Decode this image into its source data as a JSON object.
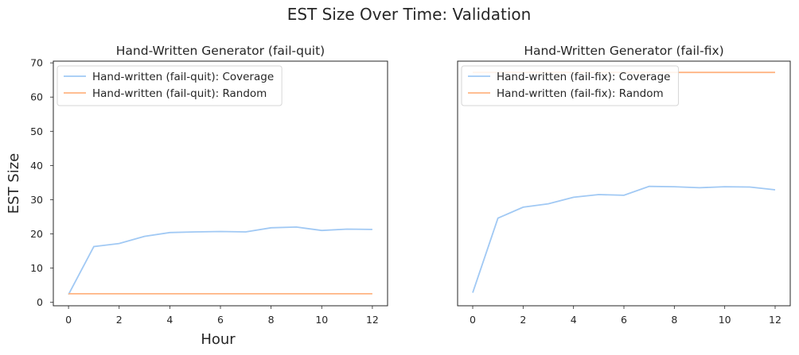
{
  "figure": {
    "suptitle": "EST Size Over Time: Validation",
    "ylabel": "EST Size",
    "xlabel": "Hour"
  },
  "chart_data": [
    {
      "type": "line",
      "title": "Hand-Written Generator (fail-quit)",
      "xlabel": "Hour",
      "ylabel": "EST Size",
      "xlim": [
        -0.6,
        12.6
      ],
      "ylim": [
        -1,
        70.5
      ],
      "xticks": [
        "0",
        "2",
        "4",
        "6",
        "8",
        "10",
        "12"
      ],
      "yticks": [
        "0",
        "10",
        "20",
        "30",
        "40",
        "50",
        "60",
        "70"
      ],
      "legend_position": "top-left",
      "x": [
        0,
        1,
        2,
        3,
        4,
        5,
        6,
        7,
        8,
        9,
        10,
        11,
        12
      ],
      "series": [
        {
          "name": "Hand-written (fail-quit): Coverage",
          "color": "#a1c9f4",
          "values": [
            2.3,
            16.3,
            17.2,
            19.3,
            20.4,
            20.6,
            20.7,
            20.6,
            21.8,
            22.0,
            21.0,
            21.4,
            21.3
          ]
        },
        {
          "name": "Hand-written (fail-quit): Random",
          "color": "#ffb482",
          "values": [
            2.5,
            2.5,
            2.5,
            2.5,
            2.5,
            2.5,
            2.5,
            2.5,
            2.5,
            2.5,
            2.5,
            2.5,
            2.5
          ]
        }
      ]
    },
    {
      "type": "line",
      "title": "Hand-Written Generator (fail-fix)",
      "xlabel": "Hour",
      "ylabel": "",
      "xlim": [
        -0.6,
        12.6
      ],
      "ylim": [
        -1,
        70.5
      ],
      "xticks": [
        "0",
        "2",
        "4",
        "6",
        "8",
        "10",
        "12"
      ],
      "yticks": [],
      "legend_position": "top-left",
      "x": [
        0,
        1,
        2,
        3,
        4,
        5,
        6,
        7,
        8,
        9,
        10,
        11,
        12
      ],
      "series": [
        {
          "name": "Hand-written (fail-fix): Coverage",
          "color": "#a1c9f4",
          "values": [
            2.8,
            24.6,
            27.8,
            28.8,
            30.7,
            31.5,
            31.3,
            33.9,
            33.8,
            33.5,
            33.8,
            33.7,
            32.9
          ]
        },
        {
          "name": "Hand-written (fail-fix): Random",
          "color": "#ffb482",
          "values": [
            67.2,
            67.2,
            67.2,
            67.2,
            67.2,
            67.2,
            67.2,
            67.2,
            67.2,
            67.2,
            67.2,
            67.2,
            67.2
          ]
        }
      ]
    }
  ]
}
